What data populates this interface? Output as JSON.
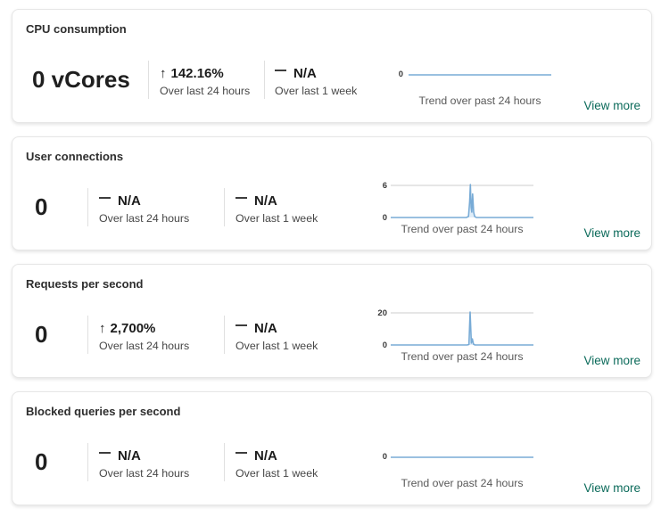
{
  "colors": {
    "accent_link": "#0b6a5a",
    "spark_line": "#78abd6",
    "spark_fill": "#c7dff2",
    "gridline": "#cdcdcd"
  },
  "cards": [
    {
      "title": "CPU consumption",
      "value": "0 vCores",
      "metrics": [
        {
          "icon": "trend-up",
          "delta": "142.16%",
          "period": "Over last 24 hours"
        },
        {
          "icon": "flat-dash",
          "delta": "N/A",
          "period": "Over last 1 week"
        }
      ],
      "chart": {
        "type": "line",
        "caption": "Trend over past 24 hours",
        "y_axis_labels": [
          "0"
        ],
        "ymax": 1,
        "points": [
          [
            0,
            0
          ],
          [
            1,
            0
          ]
        ]
      },
      "view_more_label": "View more"
    },
    {
      "title": "User connections",
      "value": "0",
      "metrics": [
        {
          "icon": "flat-dash",
          "delta": "N/A",
          "period": "Over last 24 hours"
        },
        {
          "icon": "flat-dash",
          "delta": "N/A",
          "period": "Over last 1 week"
        }
      ],
      "chart": {
        "type": "line",
        "caption": "Trend over past 24 hours",
        "y_axis_labels": [
          "6",
          "0"
        ],
        "ymax": 6,
        "points": [
          [
            0,
            0
          ],
          [
            0.53,
            0
          ],
          [
            0.545,
            0.2
          ],
          [
            0.553,
            3
          ],
          [
            0.558,
            6.15
          ],
          [
            0.563,
            2
          ],
          [
            0.568,
            1
          ],
          [
            0.574,
            4.4
          ],
          [
            0.581,
            1
          ],
          [
            0.588,
            0.2
          ],
          [
            0.6,
            0
          ],
          [
            1,
            0
          ]
        ]
      },
      "view_more_label": "View more"
    },
    {
      "title": "Requests per second",
      "value": "0",
      "metrics": [
        {
          "icon": "trend-up",
          "delta": "2,700%",
          "period": "Over last 24 hours"
        },
        {
          "icon": "flat-dash",
          "delta": "N/A",
          "period": "Over last 1 week"
        }
      ],
      "chart": {
        "type": "line",
        "caption": "Trend over past 24 hours",
        "y_axis_labels": [
          "20",
          "0"
        ],
        "ymax": 20,
        "points": [
          [
            0,
            0
          ],
          [
            0.535,
            0
          ],
          [
            0.548,
            0.3
          ],
          [
            0.556,
            20.5
          ],
          [
            0.565,
            1.2
          ],
          [
            0.572,
            3.8
          ],
          [
            0.58,
            0.5
          ],
          [
            0.59,
            0
          ],
          [
            1,
            0
          ]
        ]
      },
      "view_more_label": "View more"
    },
    {
      "title": "Blocked queries per second",
      "value": "0",
      "metrics": [
        {
          "icon": "flat-dash",
          "delta": "N/A",
          "period": "Over last 24 hours"
        },
        {
          "icon": "flat-dash",
          "delta": "N/A",
          "period": "Over last 1 week"
        }
      ],
      "chart": {
        "type": "line",
        "caption": "Trend over past 24 hours",
        "y_axis_labels": [
          "0"
        ],
        "ymax": 1,
        "points": [
          [
            0,
            0
          ],
          [
            1,
            0
          ]
        ]
      },
      "view_more_label": "View more"
    }
  ]
}
